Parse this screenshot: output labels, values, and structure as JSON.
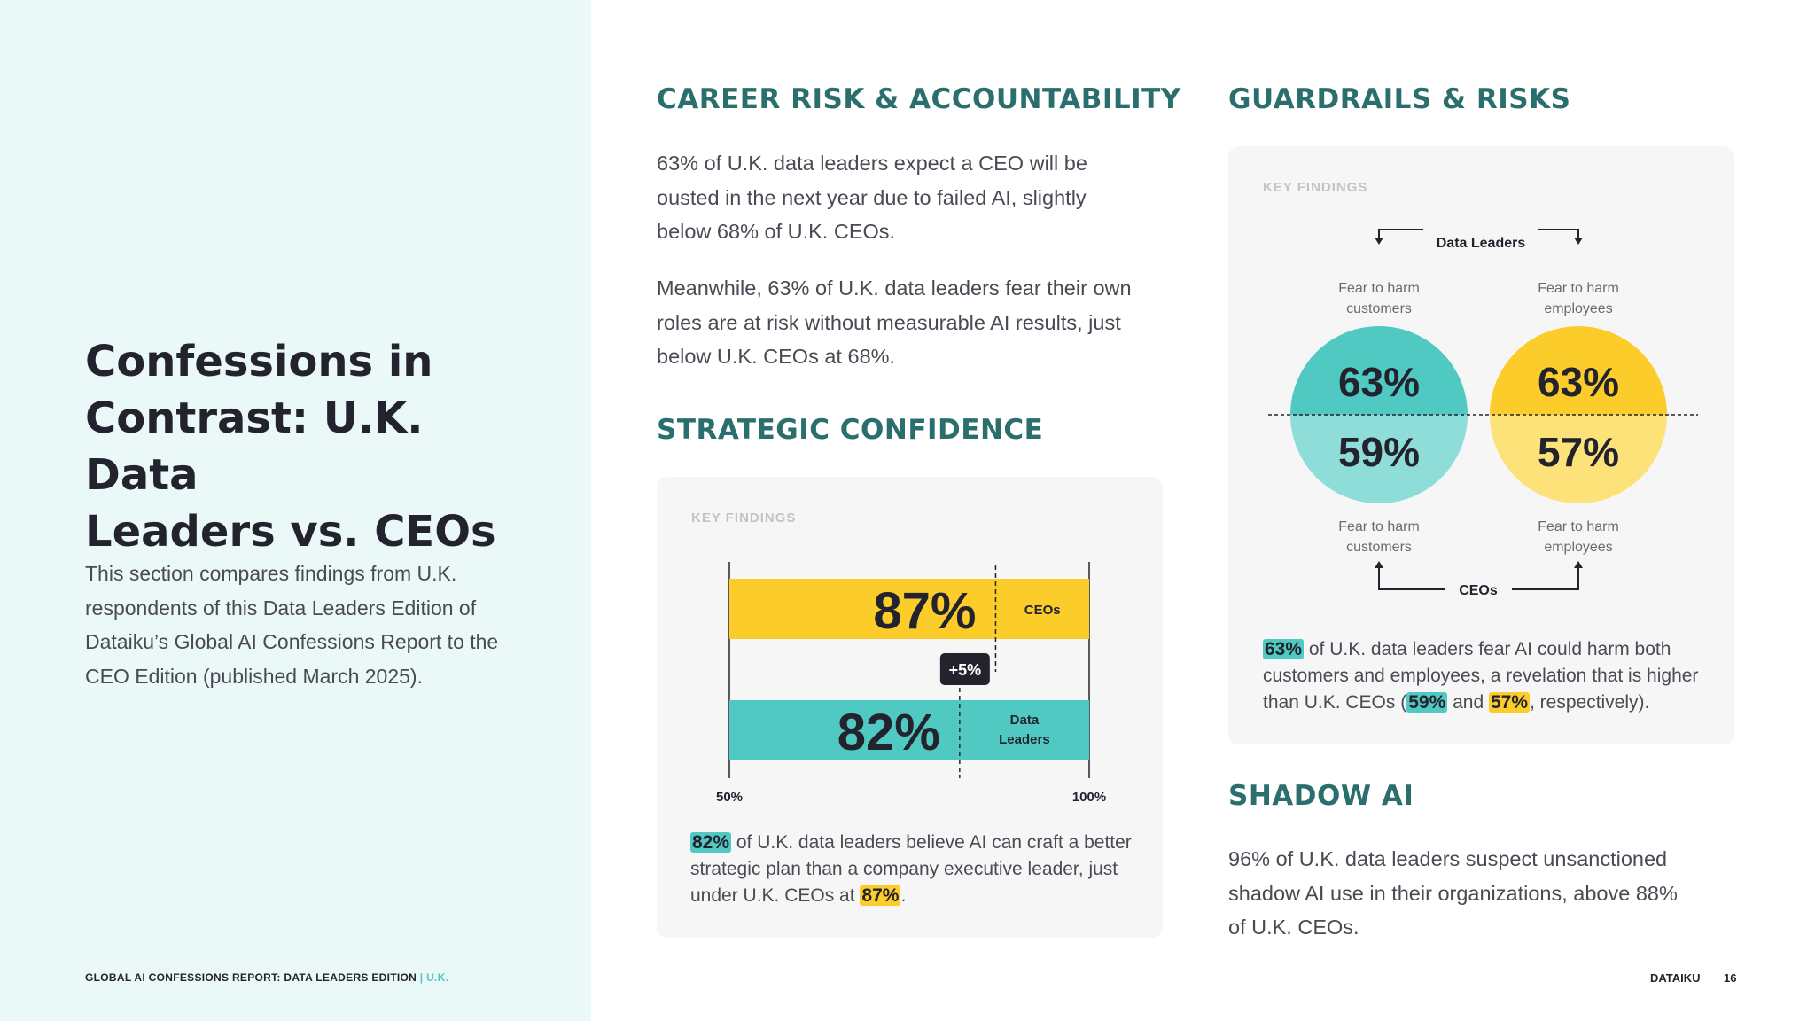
{
  "left": {
    "title_lines": [
      "Confessions in",
      "Contrast: U.K. Data",
      "Leaders vs. CEOs"
    ],
    "intro_lines": [
      "This section compares findings from U.K.",
      "respondents of this Data Leaders Edition of",
      "Dataiku’s Global AI Confessions Report to the",
      "CEO Edition (published March 2025)."
    ],
    "footer_report": "GLOBAL AI CONFESSIONS REPORT: DATA LEADERS EDITION",
    "footer_sep": " | ",
    "footer_country": "U.K."
  },
  "career": {
    "heading": "CAREER RISK & ACCOUNTABILITY",
    "para1_lines": [
      "63% of U.K. data leaders expect a CEO will be",
      "ousted in the next year due to failed AI, slightly",
      "below 68% of U.K. CEOs."
    ],
    "para2_lines": [
      "Meanwhile, 63% of U.K. data leaders fear their own",
      "roles are at risk without measurable AI results, just",
      "below U.K. CEOs at 68%."
    ]
  },
  "strategic": {
    "heading": "STRATEGIC CONFIDENCE",
    "key_findings": "KEY FINDINGS",
    "caption": {
      "hl1": "82%",
      "line1": " of U.K. data leaders believe AI can craft a better",
      "line2": "strategic plan than a company executive leader, just",
      "line3_pre": "under U.K. CEOs at ",
      "hl2": "87%",
      "line3_post": "."
    }
  },
  "guardrails": {
    "heading": "GUARDRAILS & RISKS",
    "key_findings": "KEY FINDINGS",
    "caption": {
      "hl1": "63%",
      "line1": " of U.K. data leaders fear AI could harm both",
      "line2": "customers and employees, a revelation that is higher",
      "line3_pre": "than U.K. CEOs (",
      "hl2": "59%",
      "mid": " and ",
      "hl3": "57%",
      "line3_post": ", respectively)."
    }
  },
  "shadow": {
    "heading": "SHADOW AI",
    "para_lines": [
      "96% of U.K. data leaders suspect unsanctioned",
      "shadow AI use in their organizations, above 88%",
      "of U.K. CEOs."
    ]
  },
  "footer": {
    "brand": "DATAIKU",
    "page": "16"
  },
  "colors": {
    "teal": "#4fc9c2",
    "teal_light": "#8fddd8",
    "yellow": "#fbcc2a",
    "yellow_light": "#fde27a",
    "heading": "#2a6f6d",
    "dark": "#23232e"
  },
  "chart_data": [
    {
      "type": "bar",
      "orientation": "horizontal",
      "title": "Strategic Confidence",
      "categories": [
        "CEOs",
        "Data Leaders"
      ],
      "values": [
        87,
        82
      ],
      "value_labels": [
        "87%",
        "82%"
      ],
      "category_labels": [
        [
          "CEOs"
        ],
        [
          "Data",
          "Leaders"
        ]
      ],
      "xlim": [
        50,
        100
      ],
      "tick_labels": [
        "50%",
        "100%"
      ],
      "difference_label": "+5%",
      "colors": [
        "#fbcc2a",
        "#4fc9c2"
      ]
    },
    {
      "type": "split-circles",
      "title": "Guardrails & Risks",
      "top_group_label": "Data Leaders",
      "bottom_group_label": "CEOs",
      "items": [
        {
          "label_top": [
            "Fear to harm",
            "customers"
          ],
          "label_bottom": [
            "Fear to harm",
            "customers"
          ],
          "data_leaders": 63,
          "ceos": 59,
          "data_leaders_label": "63%",
          "ceos_label": "59%"
        },
        {
          "label_top": [
            "Fear to harm",
            "employees"
          ],
          "label_bottom": [
            "Fear to harm",
            "employees"
          ],
          "data_leaders": 63,
          "ceos": 57,
          "data_leaders_label": "63%",
          "ceos_label": "57%"
        }
      ]
    }
  ]
}
